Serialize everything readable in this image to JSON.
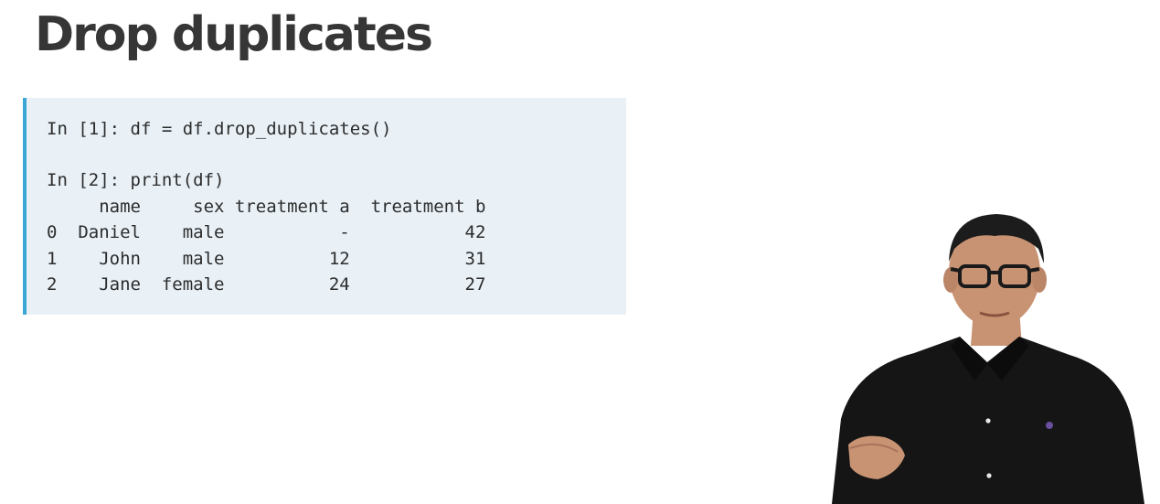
{
  "slide": {
    "title": "Drop duplicates"
  },
  "code": {
    "lines": [
      "In [1]: df = df.drop_duplicates()",
      "In [2]: print(df)",
      "     name     sex treatment a  treatment b",
      "0  Daniel    male           -           42",
      "1    John    male          12           31",
      "2    Jane  female          24           27"
    ]
  },
  "presenter": {
    "description": "video-presenter",
    "colors": {
      "shirt": "#151515",
      "skin": "#c89373",
      "hair": "#1c1c1c",
      "logo": "#6a4fa0"
    }
  },
  "colors": {
    "title": "#363636",
    "code_bg": "#e9f1f7",
    "code_accent": "#3aa7d6",
    "code_text": "#2c2c2c"
  }
}
